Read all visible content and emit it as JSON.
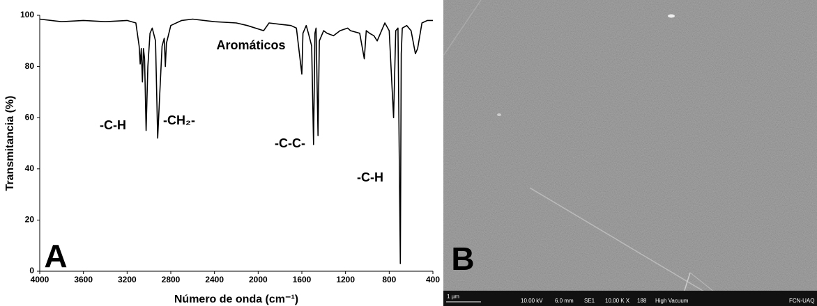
{
  "chart_data": {
    "type": "line",
    "color": "#000000",
    "x": [
      4000,
      3800,
      3600,
      3400,
      3200,
      3120,
      3090,
      3080,
      3070,
      3060,
      3050,
      3040,
      3026,
      3010,
      2990,
      2970,
      2940,
      2920,
      2900,
      2880,
      2860,
      2850,
      2840,
      2800,
      2700,
      2600,
      2400,
      2200,
      2100,
      1950,
      1900,
      1800,
      1700,
      1650,
      1600,
      1590,
      1560,
      1540,
      1510,
      1493,
      1480,
      1470,
      1452,
      1440,
      1400,
      1370,
      1310,
      1250,
      1180,
      1155,
      1070,
      1028,
      1010,
      980,
      940,
      910,
      860,
      840,
      800,
      760,
      740,
      720,
      698,
      690,
      680,
      640,
      600,
      560,
      540,
      500,
      450,
      400
    ],
    "values": [
      98.5,
      97.5,
      98,
      97.5,
      98,
      97,
      88,
      81,
      87,
      74,
      87,
      83,
      55,
      80,
      93,
      95,
      90,
      52,
      70,
      88,
      91,
      80,
      89,
      96,
      98,
      98.5,
      97.5,
      97,
      96,
      94,
      97,
      96.5,
      96,
      95,
      77,
      93,
      96,
      93,
      88,
      49.5,
      93,
      95,
      53,
      90,
      94,
      93,
      92,
      94,
      95,
      94,
      93,
      83,
      94,
      93,
      92,
      90,
      95,
      97,
      94,
      60,
      94,
      95,
      3,
      85,
      95,
      96,
      94,
      85,
      87,
      97,
      98,
      98
    ],
    "xlim": [
      4000,
      400
    ],
    "xticks": [
      4000,
      3600,
      3200,
      2800,
      2400,
      2000,
      1600,
      1200,
      800,
      400
    ],
    "ylim": [
      0,
      100
    ],
    "yticks": [
      0,
      20,
      40,
      60,
      80,
      100
    ],
    "xlabel": "Número de onda (cm⁻¹)",
    "ylabel": "Transmitancia (%)",
    "panel_label": "A",
    "annotations": [
      "-C-H",
      "-CH₂-",
      "Aromáticos",
      "-C-C-",
      "-C-H"
    ]
  },
  "image": {
    "panel_label": "B",
    "info": [
      "1 µm",
      "10.00 kV",
      "6.0 mm",
      "SE1",
      "10.00 K X",
      "188",
      "High Vacuum",
      "FCN-UAQ"
    ]
  }
}
